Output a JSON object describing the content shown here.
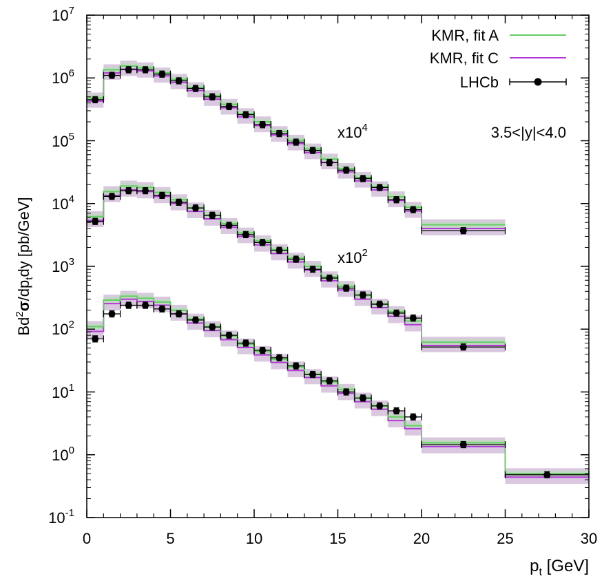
{
  "chart_data": {
    "type": "line",
    "style": "step-histogram-with-error-bars",
    "xlabel": "p_t [GeV]",
    "xlabel_main": "p",
    "xlabel_sub": "t",
    "xlabel_unit": " [GeV]",
    "ylabel": "Bd²σ/dp_tdy [pb/GeV]",
    "ylabel_parts": {
      "a": "Bd",
      "sup": "2",
      "sigma": "σ",
      "b": "/dp",
      "sub": "t",
      "c": "dy [pb/GeV]"
    },
    "xlim": [
      0,
      30
    ],
    "ylim_log10": [
      -1,
      7
    ],
    "yscale": "log",
    "x_ticks": [
      "0",
      "5",
      "10",
      "15",
      "20",
      "25",
      "30"
    ],
    "y_ticks": [
      {
        "base": "10",
        "exp": "-1"
      },
      {
        "base": "10",
        "exp": "0"
      },
      {
        "base": "10",
        "exp": "1"
      },
      {
        "base": "10",
        "exp": "2"
      },
      {
        "base": "10",
        "exp": "3"
      },
      {
        "base": "10",
        "exp": "4"
      },
      {
        "base": "10",
        "exp": "5"
      },
      {
        "base": "10",
        "exp": "6"
      },
      {
        "base": "10",
        "exp": "7"
      }
    ],
    "rapidity_label": "3.5<|y|<4.0",
    "legend_position": "top-right",
    "colors": {
      "fitA": "#66cc66",
      "fitC": "#b238d6",
      "lhcb": "#000000",
      "bandA": "#b9dcb9",
      "bandC": "#cdb6d6"
    },
    "legend": [
      {
        "key": "fitA",
        "label": "KMR, fit A"
      },
      {
        "key": "fitC",
        "label": "KMR, fit C"
      },
      {
        "key": "lhcb",
        "label": "LHCb"
      }
    ],
    "bins": [
      [
        0,
        1
      ],
      [
        1,
        2
      ],
      [
        2,
        3
      ],
      [
        3,
        4
      ],
      [
        4,
        5
      ],
      [
        5,
        6
      ],
      [
        6,
        7
      ],
      [
        7,
        8
      ],
      [
        8,
        9
      ],
      [
        9,
        10
      ],
      [
        10,
        11
      ],
      [
        11,
        12
      ],
      [
        12,
        13
      ],
      [
        13,
        14
      ],
      [
        14,
        15
      ],
      [
        15,
        16
      ],
      [
        16,
        17
      ],
      [
        17,
        18
      ],
      [
        18,
        19
      ],
      [
        19,
        20
      ],
      [
        20,
        25
      ],
      [
        25,
        30
      ]
    ],
    "groups": [
      {
        "name": "x1",
        "scale_label": null,
        "nbins": 22,
        "fitA": [
          110,
          290,
          335,
          310,
          270,
          200,
          145,
          110,
          78,
          58,
          44,
          33,
          25,
          19,
          14.5,
          11,
          8,
          6,
          4,
          2.9,
          1.55,
          0.5
        ],
        "fitC": [
          92,
          255,
          300,
          275,
          240,
          175,
          125,
          95,
          68,
          51,
          39,
          29.5,
          22,
          17,
          12.5,
          9.5,
          7,
          5.3,
          3.5,
          2.6,
          1.35,
          0.44
        ],
        "lhcb": [
          70,
          175,
          240,
          240,
          210,
          175,
          140,
          108,
          80,
          60,
          46,
          35,
          26,
          19,
          15,
          10,
          8,
          6,
          5,
          4,
          1.45,
          0.48
        ]
      },
      {
        "name": "x100",
        "scale_label": {
          "base": "x10",
          "exp": "2"
        },
        "nbins": 21,
        "fitA": [
          6200,
          15500,
          19000,
          18000,
          15000,
          11500,
          8500,
          6500,
          4800,
          3400,
          2550,
          1850,
          1350,
          1000,
          680,
          480,
          345,
          250,
          190,
          135,
          62
        ],
        "fitC": [
          5400,
          13500,
          16500,
          15500,
          13000,
          10000,
          7500,
          5700,
          4200,
          3000,
          2200,
          1600,
          1180,
          870,
          590,
          420,
          300,
          220,
          160,
          118,
          55
        ],
        "lhcb": [
          5200,
          13000,
          16000,
          16000,
          13500,
          10500,
          8500,
          6500,
          4500,
          3200,
          2400,
          1800,
          1300,
          900,
          650,
          450,
          350,
          250,
          180,
          150,
          52
        ]
      },
      {
        "name": "x10000",
        "scale_label": {
          "base": "x10",
          "exp": "4"
        },
        "nbins": 21,
        "fitA": [
          480000,
          1350000,
          1550000,
          1450000,
          1200000,
          950000,
          700000,
          520000,
          380000,
          270000,
          200000,
          140000,
          102000,
          74000,
          51000,
          36000,
          26000,
          18500,
          12800,
          8700,
          4600
        ],
        "fitC": [
          430000,
          1200000,
          1380000,
          1300000,
          1080000,
          850000,
          630000,
          460000,
          335000,
          240000,
          175000,
          124000,
          90000,
          65000,
          45000,
          32000,
          23000,
          16500,
          11200,
          7600,
          4000
        ],
        "lhcb": [
          450000,
          1100000,
          1350000,
          1350000,
          1150000,
          900000,
          680000,
          500000,
          350000,
          260000,
          180000,
          130000,
          95000,
          70000,
          45000,
          34000,
          25000,
          18000,
          11500,
          8000,
          3700
        ]
      }
    ]
  }
}
